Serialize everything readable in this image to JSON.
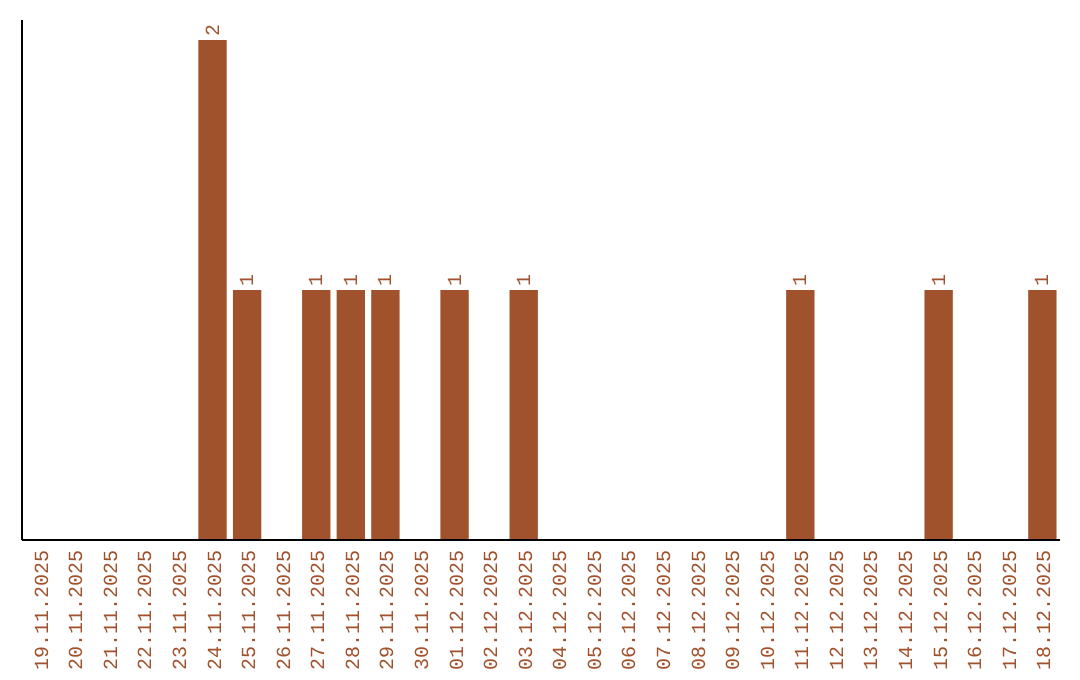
{
  "chart_data": {
    "type": "bar",
    "categories": [
      "19.11.2025",
      "20.11.2025",
      "21.11.2025",
      "22.11.2025",
      "23.11.2025",
      "24.11.2025",
      "25.11.2025",
      "26.11.2025",
      "27.11.2025",
      "28.11.2025",
      "29.11.2025",
      "30.11.2025",
      "01.12.2025",
      "02.12.2025",
      "03.12.2025",
      "04.12.2025",
      "05.12.2025",
      "06.12.2025",
      "07.12.2025",
      "08.12.2025",
      "09.12.2025",
      "10.12.2025",
      "11.12.2025",
      "12.12.2025",
      "13.12.2025",
      "14.12.2025",
      "15.12.2025",
      "16.12.2025",
      "17.12.2025",
      "18.12.2025"
    ],
    "values": [
      0,
      0,
      0,
      0,
      0,
      2,
      1,
      0,
      1,
      1,
      1,
      0,
      1,
      0,
      1,
      0,
      0,
      0,
      0,
      0,
      0,
      0,
      1,
      0,
      0,
      0,
      1,
      0,
      0,
      1
    ],
    "value_labels": [
      null,
      null,
      null,
      null,
      null,
      "2",
      "1",
      null,
      "1",
      "1",
      "1",
      null,
      "1",
      null,
      "1",
      null,
      null,
      null,
      null,
      null,
      null,
      null,
      "1",
      null,
      null,
      null,
      "1",
      null,
      null,
      "1"
    ],
    "color": "#a0522d"
  }
}
